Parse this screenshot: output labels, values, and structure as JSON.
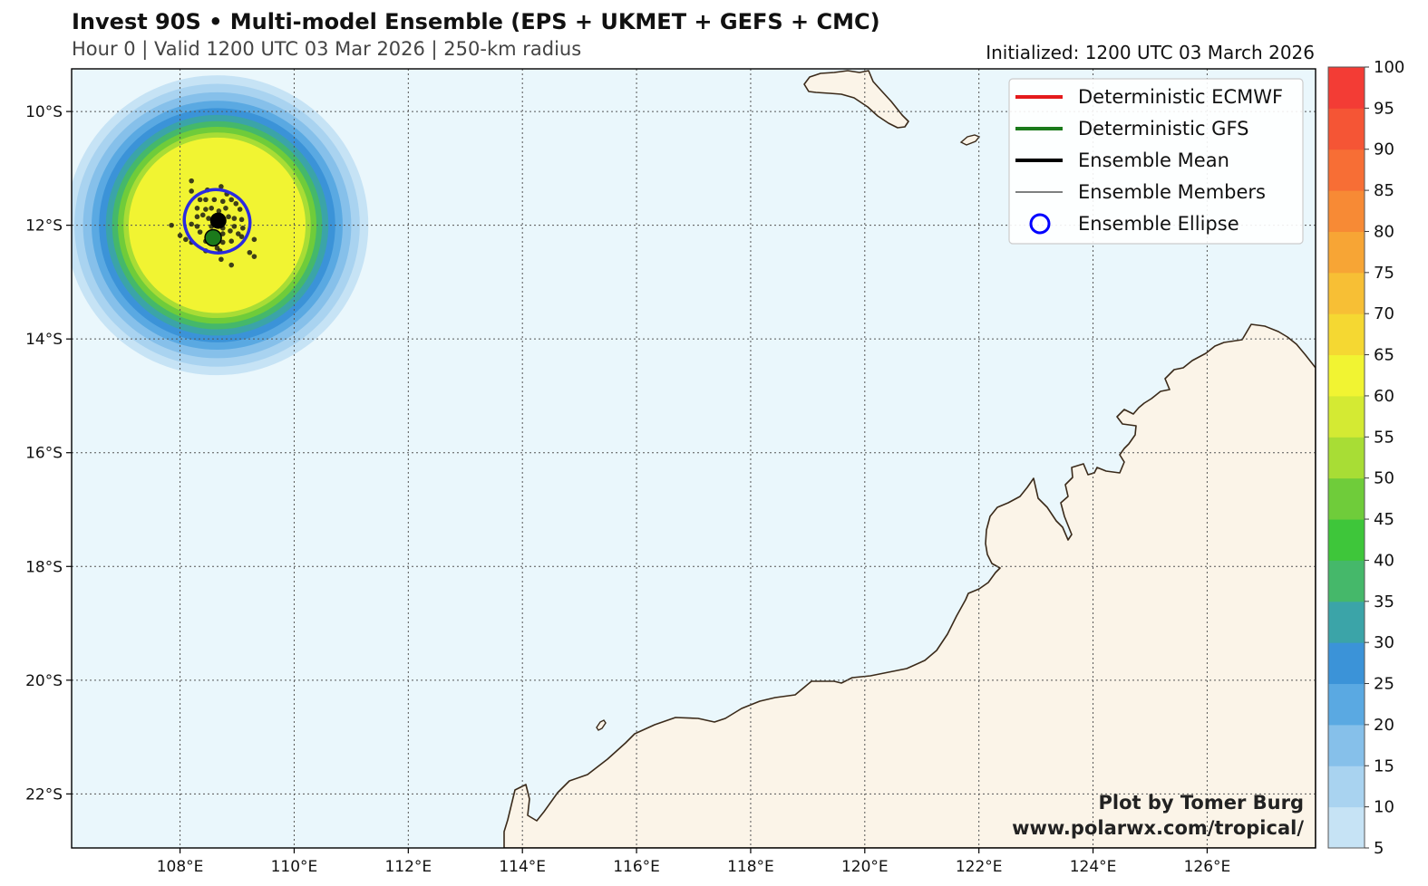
{
  "header": {
    "title": "Invest 90S • Multi-model Ensemble (EPS + UKMET + GEFS + CMC)",
    "subtitle": "Hour 0 | Valid 1200 UTC 03 Mar 2026 | 250-km radius",
    "initialized": "Initialized: 1200 UTC 03 March 2026"
  },
  "credit": {
    "line1": "Plot by Tomer Burg",
    "line2": "www.polarwx.com/tropical/"
  },
  "legend": [
    {
      "label": "Deterministic ECMWF",
      "color": "#e41a1c",
      "kind": "line-thick"
    },
    {
      "label": "Deterministic GFS",
      "color": "#1b7a1b",
      "kind": "line-thick"
    },
    {
      "label": "Ensemble Mean",
      "color": "#000000",
      "kind": "line-thick"
    },
    {
      "label": "Ensemble Members",
      "color": "#000000",
      "kind": "line-thin"
    },
    {
      "label": "Ensemble Ellipse",
      "color": "#0000ff",
      "kind": "circle"
    }
  ],
  "colors": {
    "ocean": "#eaf7fc",
    "land": "#fbf4e8",
    "coast": "#3a2a1a",
    "ellipse": "#2a2ae0",
    "gfs_point": "#1b7a1b"
  },
  "chart_data": {
    "type": "map",
    "extent": {
      "lon": [
        106.1,
        127.9
      ],
      "lat": [
        -22.95,
        -9.25
      ]
    },
    "lon_ticks": [
      108,
      110,
      112,
      114,
      116,
      118,
      120,
      122,
      124,
      126
    ],
    "lat_ticks": [
      -10,
      -12,
      -14,
      -16,
      -18,
      -20,
      -22
    ],
    "lon_labels": [
      "108°E",
      "110°E",
      "112°E",
      "114°E",
      "116°E",
      "118°E",
      "120°E",
      "122°E",
      "124°E",
      "126°E"
    ],
    "lat_labels": [
      "10°S",
      "12°S",
      "14°S",
      "16°S",
      "18°S",
      "20°S",
      "22°S"
    ],
    "probability_center": {
      "lon": 108.65,
      "lat": -12.0
    },
    "probability_bands_deg": [
      {
        "r": 2.65,
        "color": "#c6e3f5"
      },
      {
        "r": 2.5,
        "color": "#a9d3f0"
      },
      {
        "r": 2.35,
        "color": "#86c0ea"
      },
      {
        "r": 2.2,
        "color": "#5aa9e2"
      },
      {
        "r": 2.07,
        "color": "#3b93d8"
      },
      {
        "r": 1.95,
        "color": "#3ba4a8"
      },
      {
        "r": 1.84,
        "color": "#45b86a"
      },
      {
        "r": 1.74,
        "color": "#6fcc3a"
      },
      {
        "r": 1.64,
        "color": "#a8dd35"
      },
      {
        "r": 1.55,
        "color": "#f1f432"
      }
    ],
    "ellipse": {
      "lon": 108.65,
      "lat": -11.93,
      "rx_deg": 0.58,
      "ry_deg": 0.55,
      "angle": 25
    },
    "ensemble_mean": {
      "lon": 108.67,
      "lat": -11.92
    },
    "gfs_point": {
      "lon": 108.58,
      "lat": -12.22
    },
    "member_points": [
      [
        108.2,
        -11.22
      ],
      [
        108.2,
        -11.4
      ],
      [
        108.48,
        -11.38
      ],
      [
        108.72,
        -11.32
      ],
      [
        108.82,
        -11.45
      ],
      [
        108.35,
        -11.55
      ],
      [
        108.45,
        -11.55
      ],
      [
        108.6,
        -11.55
      ],
      [
        108.75,
        -11.58
      ],
      [
        108.9,
        -11.55
      ],
      [
        108.98,
        -11.62
      ],
      [
        108.3,
        -11.7
      ],
      [
        108.45,
        -11.72
      ],
      [
        108.55,
        -11.7
      ],
      [
        108.68,
        -11.75
      ],
      [
        108.8,
        -11.7
      ],
      [
        109.05,
        -11.72
      ],
      [
        108.3,
        -11.85
      ],
      [
        108.4,
        -11.82
      ],
      [
        108.5,
        -11.88
      ],
      [
        108.6,
        -11.85
      ],
      [
        108.75,
        -11.88
      ],
      [
        108.85,
        -11.85
      ],
      [
        108.95,
        -11.88
      ],
      [
        109.08,
        -11.9
      ],
      [
        107.85,
        -12.0
      ],
      [
        108.2,
        -11.98
      ],
      [
        108.3,
        -12.02
      ],
      [
        108.55,
        -12.02
      ],
      [
        108.75,
        -12.05
      ],
      [
        108.95,
        -12.02
      ],
      [
        109.1,
        -12.05
      ],
      [
        108.35,
        -12.12
      ],
      [
        108.6,
        -12.12
      ],
      [
        108.75,
        -12.15
      ],
      [
        108.88,
        -12.1
      ],
      [
        109.02,
        -12.15
      ],
      [
        109.08,
        -12.2
      ],
      [
        108.0,
        -12.18
      ],
      [
        108.1,
        -12.25
      ],
      [
        108.2,
        -12.3
      ],
      [
        108.45,
        -12.28
      ],
      [
        108.65,
        -12.25
      ],
      [
        108.75,
        -12.3
      ],
      [
        108.9,
        -12.28
      ],
      [
        109.3,
        -12.25
      ],
      [
        108.45,
        -12.45
      ],
      [
        108.65,
        -12.4
      ],
      [
        108.7,
        -12.45
      ],
      [
        109.22,
        -12.48
      ],
      [
        109.3,
        -12.55
      ],
      [
        108.72,
        -12.6
      ],
      [
        108.9,
        -12.7
      ]
    ]
  },
  "colorbar": {
    "labels": [
      "5",
      "10",
      "15",
      "20",
      "25",
      "30",
      "35",
      "40",
      "45",
      "50",
      "55",
      "60",
      "65",
      "70",
      "75",
      "80",
      "85",
      "90",
      "95",
      "100"
    ],
    "colors": [
      "#c6e3f5",
      "#a9d3f0",
      "#86c0ea",
      "#5aa9e2",
      "#3b93d8",
      "#3ba4a8",
      "#45b86a",
      "#3ec63a",
      "#6fcc3a",
      "#a8dd35",
      "#d4ea33",
      "#f1f432",
      "#f5d832",
      "#f7bf35",
      "#f7a535",
      "#f78a35",
      "#f76e35",
      "#f55535",
      "#f33c35"
    ]
  }
}
